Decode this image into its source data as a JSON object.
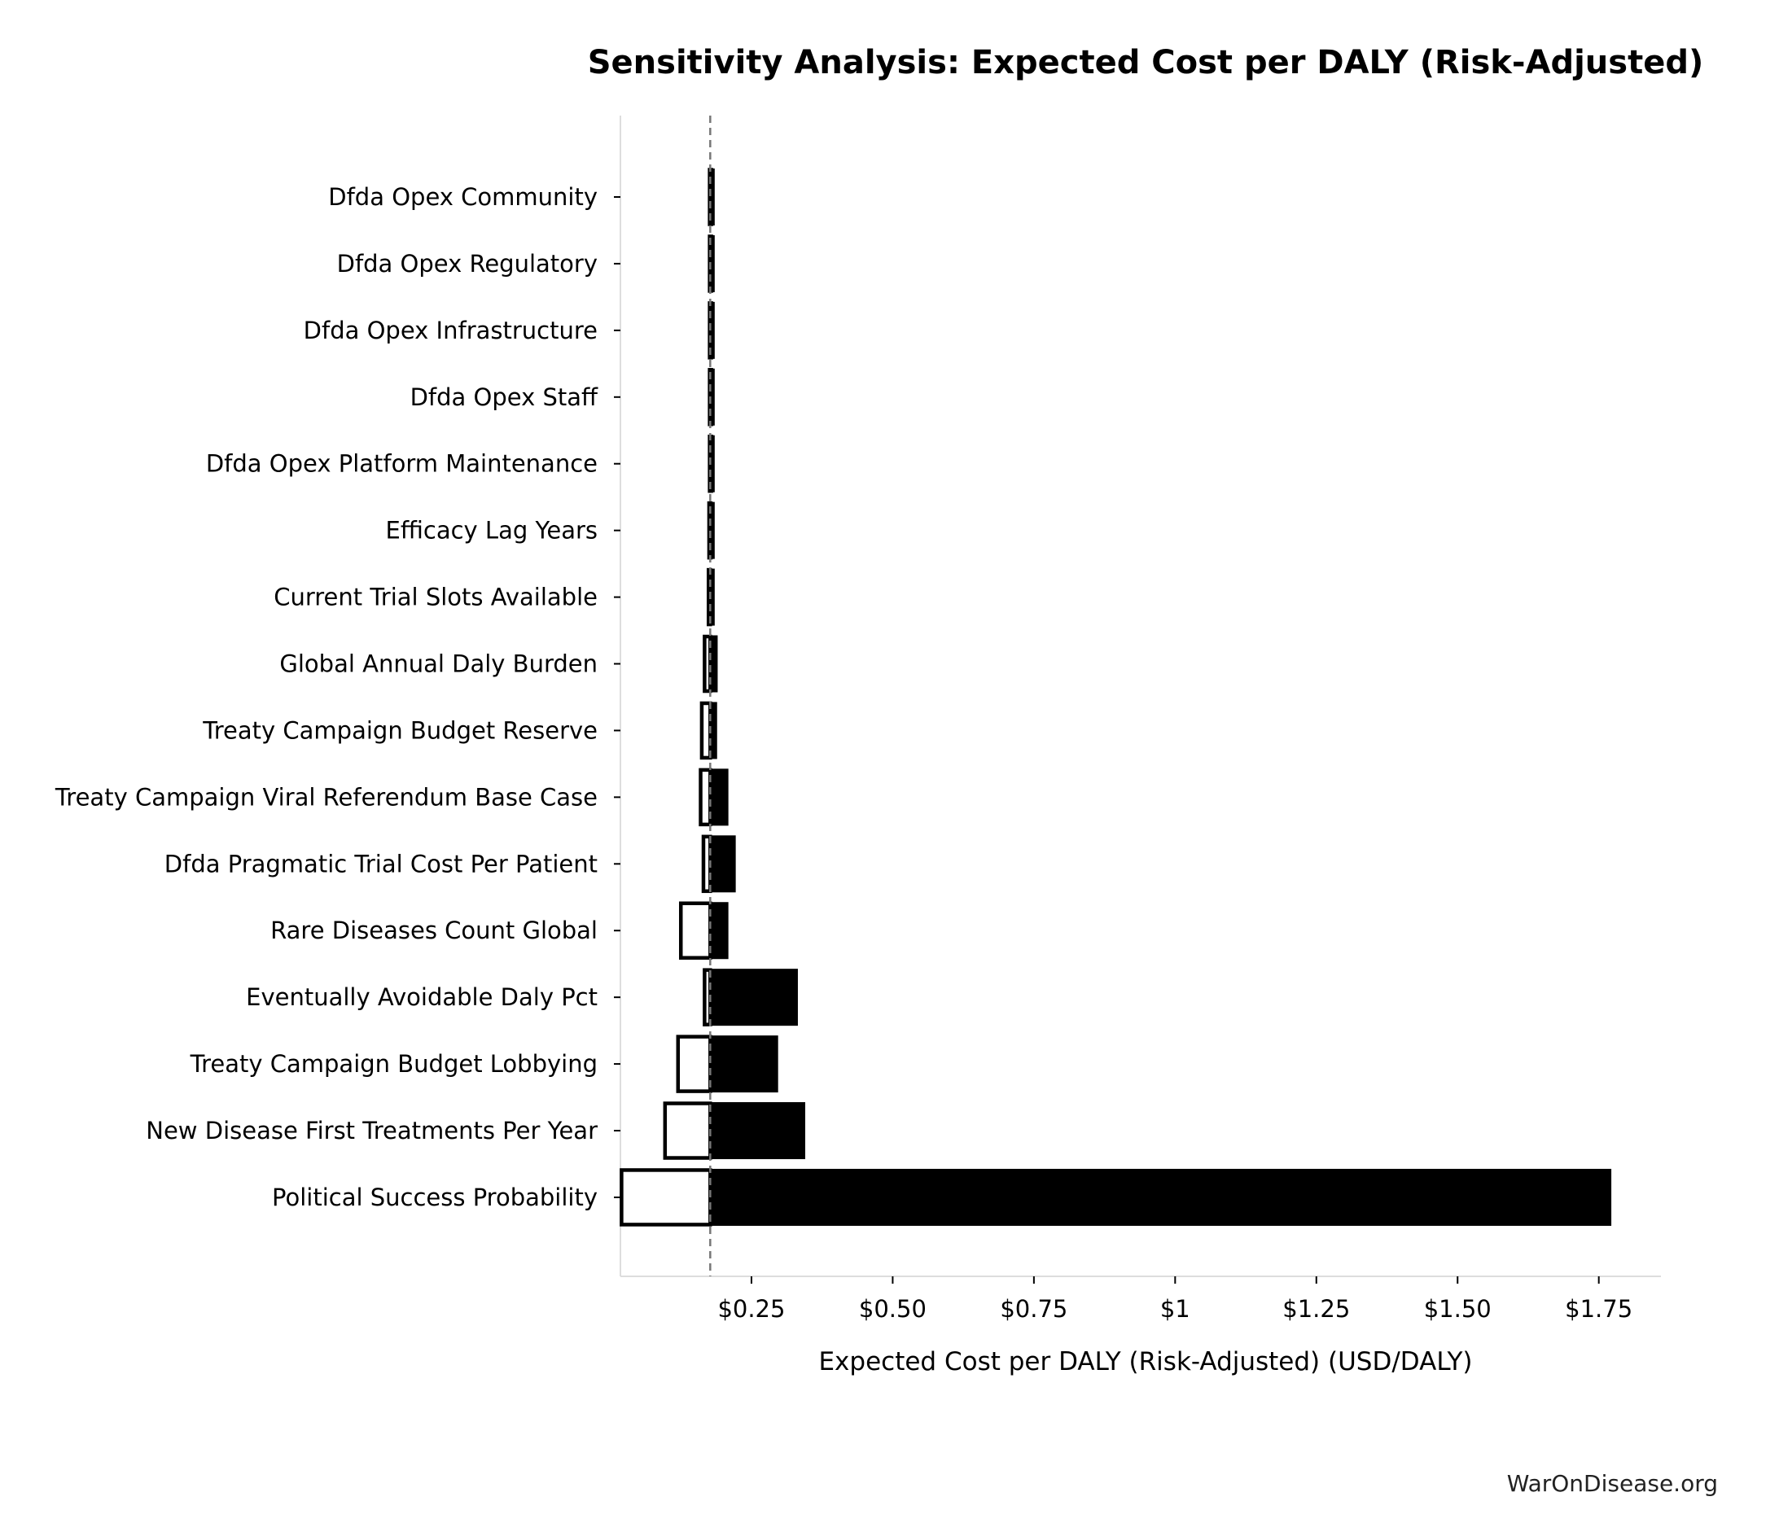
{
  "chart_data": {
    "type": "tornado",
    "title": "Sensitivity Analysis: Expected Cost per DALY (Risk-Adjusted)",
    "xlabel": "Expected Cost per DALY (Risk-Adjusted) (USD/DALY)",
    "ylabel": "",
    "baseline": 0.177,
    "xlim": [
      0.018,
      1.86
    ],
    "x_ticks": [
      {
        "value": 0.25,
        "label": "$0.25"
      },
      {
        "value": 0.5,
        "label": "$0.50"
      },
      {
        "value": 0.75,
        "label": "$0.75"
      },
      {
        "value": 1.0,
        "label": "$1"
      },
      {
        "value": 1.25,
        "label": "$1.25"
      },
      {
        "value": 1.5,
        "label": "$1.50"
      },
      {
        "value": 1.75,
        "label": "$1.75"
      }
    ],
    "legend": "none",
    "series_style": {
      "low_bar": "white fill with black outline",
      "high_bar": "solid black fill"
    },
    "parameters": [
      {
        "name": "Dfda Opex Community",
        "low": 0.176,
        "high": 0.178
      },
      {
        "name": "Dfda Opex Regulatory",
        "low": 0.176,
        "high": 0.178
      },
      {
        "name": "Dfda Opex Infrastructure",
        "low": 0.176,
        "high": 0.178
      },
      {
        "name": "Dfda Opex Staff",
        "low": 0.176,
        "high": 0.178
      },
      {
        "name": "Dfda Opex Platform Maintenance",
        "low": 0.176,
        "high": 0.178
      },
      {
        "name": "Efficacy Lag Years",
        "low": 0.175,
        "high": 0.18
      },
      {
        "name": "Current Trial Slots Available",
        "low": 0.174,
        "high": 0.181
      },
      {
        "name": "Global Annual Daly Burden",
        "low": 0.167,
        "high": 0.188
      },
      {
        "name": "Treaty Campaign Budget Reserve",
        "low": 0.162,
        "high": 0.187
      },
      {
        "name": "Treaty Campaign Viral Referendum Base Case",
        "low": 0.16,
        "high": 0.207
      },
      {
        "name": "Dfda Pragmatic Trial Cost Per Patient",
        "low": 0.165,
        "high": 0.22
      },
      {
        "name": "Rare Diseases Count Global",
        "low": 0.125,
        "high": 0.207
      },
      {
        "name": "Eventually Avoidable Daly Pct",
        "low": 0.167,
        "high": 0.33
      },
      {
        "name": "Treaty Campaign Budget Lobbying",
        "low": 0.12,
        "high": 0.295
      },
      {
        "name": "New Disease First Treatments Per Year",
        "low": 0.097,
        "high": 0.343
      },
      {
        "name": "Political Success Probability",
        "low": 0.02,
        "high": 1.77
      }
    ]
  },
  "footer": {
    "source_label": "WarOnDisease.org"
  }
}
